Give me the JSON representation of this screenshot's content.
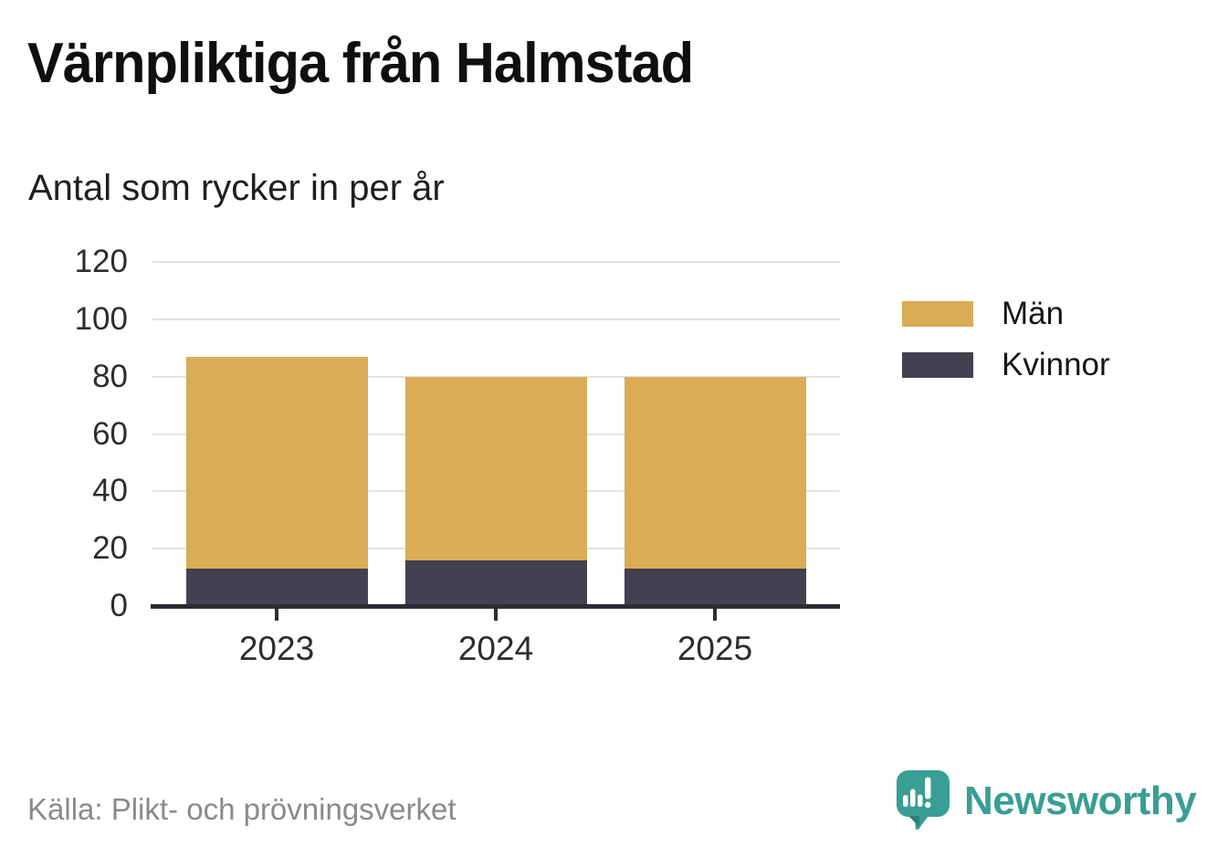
{
  "page": {
    "title": "Värnpliktiga från Halmstad",
    "subtitle": "Antal som rycker in per år",
    "source": "Källa: Plikt- och prövningsverket",
    "brand": {
      "name": "Newsworthy",
      "color": "#399e94",
      "icon": "newsworthy-speech-bubble-chart-icon"
    }
  },
  "chart_data": {
    "type": "bar",
    "stacked": true,
    "title": "Värnpliktiga från Halmstad",
    "subtitle": "Antal som rycker in per år",
    "categories": [
      "2023",
      "2024",
      "2025"
    ],
    "series": [
      {
        "name": "Kvinnor",
        "color": "#434150",
        "values": [
          13,
          16,
          13
        ]
      },
      {
        "name": "Män",
        "color": "#d9ac55",
        "values": [
          74,
          64,
          67
        ]
      }
    ],
    "totals": [
      87,
      80,
      80
    ],
    "xlabel": "",
    "ylabel": "",
    "ylim": [
      0,
      120
    ],
    "yticks": [
      0,
      20,
      40,
      60,
      80,
      100,
      120
    ],
    "grid": true,
    "legend_position": "right",
    "legend_order": [
      "Män",
      "Kvinnor"
    ],
    "axis_color": "#2e2d35",
    "gridline_color": "#e2e2e2"
  }
}
